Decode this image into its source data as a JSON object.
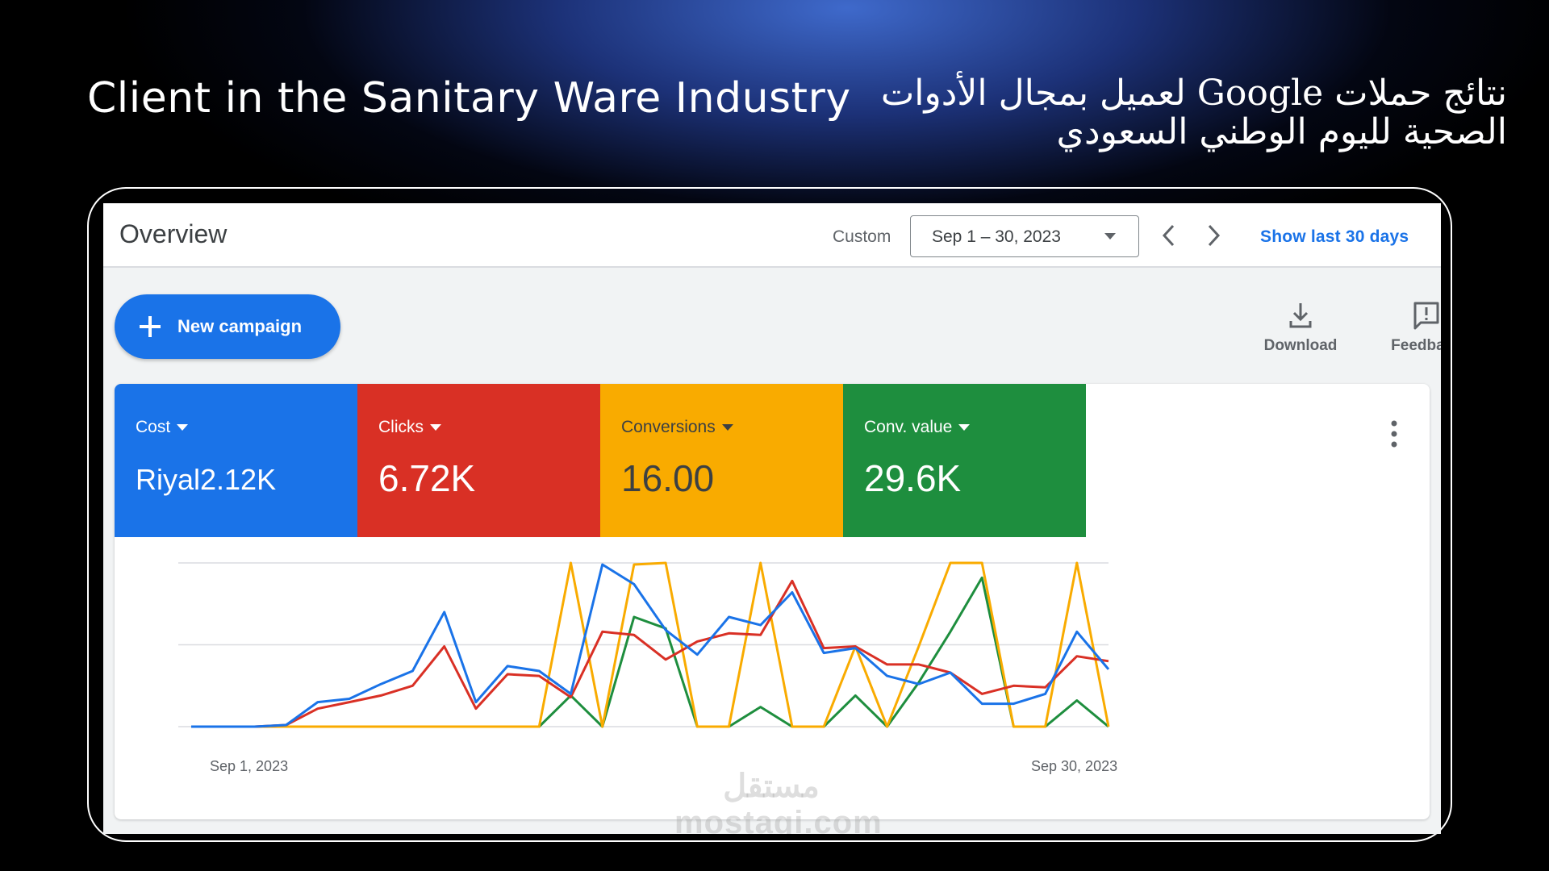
{
  "header": {
    "title_en": "Client in the Sanitary Ware Industry",
    "title_ar": "نتائج حملات Google لعميل بمجال الأدوات الصحية لليوم الوطني السعودي"
  },
  "toolbar": {
    "page_title": "Overview",
    "custom_label": "Custom",
    "date_range": "Sep 1 – 30, 2023",
    "show_last": "Show last 30 days"
  },
  "actions": {
    "new_campaign": "New campaign",
    "download": "Download",
    "feedback": "Feedback"
  },
  "metrics": [
    {
      "label": "Cost",
      "value": "Riyal2.12K",
      "color": "#1a73e8"
    },
    {
      "label": "Clicks",
      "value": "6.72K",
      "color": "#d93025"
    },
    {
      "label": "Conversions",
      "value": "16.00",
      "color": "#f9ab00"
    },
    {
      "label": "Conv. value",
      "value": "29.6K",
      "color": "#1e8e3e"
    }
  ],
  "chart_data": {
    "type": "line",
    "x_start_label": "Sep 1, 2023",
    "x_end_label": "Sep 30, 2023",
    "x": [
      1,
      2,
      3,
      4,
      5,
      6,
      7,
      8,
      9,
      10,
      11,
      12,
      13,
      14,
      15,
      16,
      17,
      18,
      19,
      20,
      21,
      22,
      23,
      24,
      25,
      26,
      27,
      28,
      29,
      30
    ],
    "grid": true,
    "series": [
      {
        "name": "Cost",
        "color": "#1a73e8",
        "values": [
          0,
          0,
          0,
          0.01,
          0.15,
          0.17,
          0.26,
          0.34,
          0.7,
          0.15,
          0.37,
          0.34,
          0.2,
          0.99,
          0.87,
          0.59,
          0.44,
          0.67,
          0.62,
          0.82,
          0.45,
          0.48,
          0.31,
          0.26,
          0.33,
          0.14,
          0.14,
          0.2,
          0.58,
          0.35
        ]
      },
      {
        "name": "Clicks",
        "color": "#d93025",
        "values": [
          0,
          0,
          0,
          0.01,
          0.11,
          0.15,
          0.19,
          0.25,
          0.49,
          0.11,
          0.32,
          0.31,
          0.18,
          0.58,
          0.56,
          0.41,
          0.52,
          0.57,
          0.56,
          0.89,
          0.48,
          0.49,
          0.38,
          0.38,
          0.33,
          0.2,
          0.25,
          0.24,
          0.43,
          0.4
        ]
      },
      {
        "name": "Conversions",
        "color": "#f9ab00",
        "values": [
          0,
          0,
          0,
          0,
          0,
          0,
          0,
          0,
          0,
          0,
          0,
          0,
          1,
          0,
          0.99,
          1,
          0,
          0,
          1,
          0,
          0,
          0.49,
          0,
          0.49,
          1,
          1,
          0,
          0,
          1,
          0
        ]
      },
      {
        "name": "Conv. value",
        "color": "#1e8e3e",
        "values": [
          0,
          0,
          0,
          0,
          0,
          0,
          0,
          0,
          0,
          0,
          0,
          0,
          0.19,
          0,
          0.67,
          0.6,
          0,
          0,
          0.12,
          0,
          0,
          0.19,
          0,
          0.27,
          0.58,
          0.91,
          0,
          0,
          0.16,
          0
        ]
      }
    ]
  },
  "watermark": "مستقل mostaqi.com"
}
